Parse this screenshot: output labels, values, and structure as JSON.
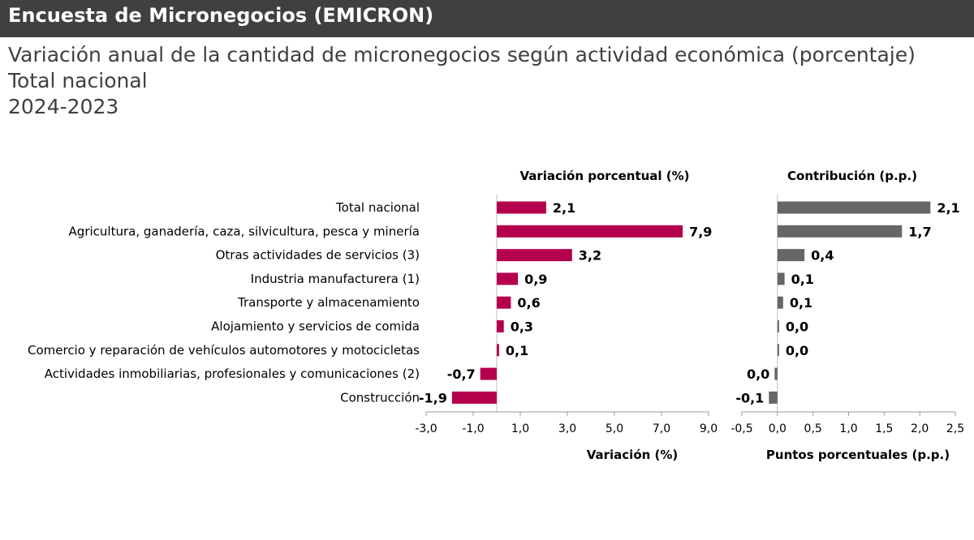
{
  "header": {
    "banner": "Encuesta de Micronegocios (EMICRON)",
    "title": "Variación anual de la cantidad de micronegocios según actividad económica (porcentaje)",
    "scope": "Total nacional",
    "period": "2024-2023"
  },
  "colors": {
    "variation_bar": "#B5004E",
    "contribution_bar": "#666666",
    "banner_bg": "#404040"
  },
  "chart_data": [
    {
      "type": "bar",
      "orientation": "horizontal",
      "title": "Variación porcentual (%)",
      "xlabel": "Variación (%)",
      "xlim": [
        -3.0,
        9.0
      ],
      "ticks": [
        -3.0,
        -1.0,
        1.0,
        3.0,
        5.0,
        7.0,
        9.0
      ],
      "tick_labels": [
        "-3,0",
        "-1,0",
        "1,0",
        "3,0",
        "5,0",
        "7,0",
        "9,0"
      ],
      "categories": [
        "Total nacional",
        "Agricultura, ganadería, caza, silvicultura, pesca y minería",
        "Otras actividades de servicios  (3)",
        "Industria manufacturera (1)",
        "Transporte y almacenamiento",
        "Alojamiento y servicios de comida",
        "Comercio y reparación de vehículos automotores y motocicletas",
        "Actividades inmobiliarias, profesionales y comunicaciones  (2)",
        "Construcción"
      ],
      "values": [
        2.1,
        7.9,
        3.2,
        0.9,
        0.6,
        0.3,
        0.1,
        -0.7,
        -1.9
      ],
      "value_labels": [
        "2,1",
        "7,9",
        "3,2",
        "0,9",
        "0,6",
        "0,3",
        "0,1",
        "-0,7",
        "-1,9"
      ]
    },
    {
      "type": "bar",
      "orientation": "horizontal",
      "title": "Contribución (p.p.)",
      "xlabel": "Puntos porcentuales (p.p.)",
      "xlim": [
        -0.5,
        2.5
      ],
      "ticks": [
        -0.5,
        0.0,
        0.5,
        1.0,
        1.5,
        2.0,
        2.5
      ],
      "tick_labels": [
        "-0,5",
        "0,0",
        "0,5",
        "1,0",
        "1,5",
        "2,0",
        "2,5"
      ],
      "values": [
        2.15,
        1.75,
        0.38,
        0.1,
        0.08,
        0.02,
        0.01,
        -0.04,
        -0.12
      ],
      "value_labels": [
        "2,1",
        "1,7",
        "0,4",
        "0,1",
        "0,1",
        "0,0",
        "0,0",
        "0,0",
        "-0,1"
      ]
    }
  ]
}
